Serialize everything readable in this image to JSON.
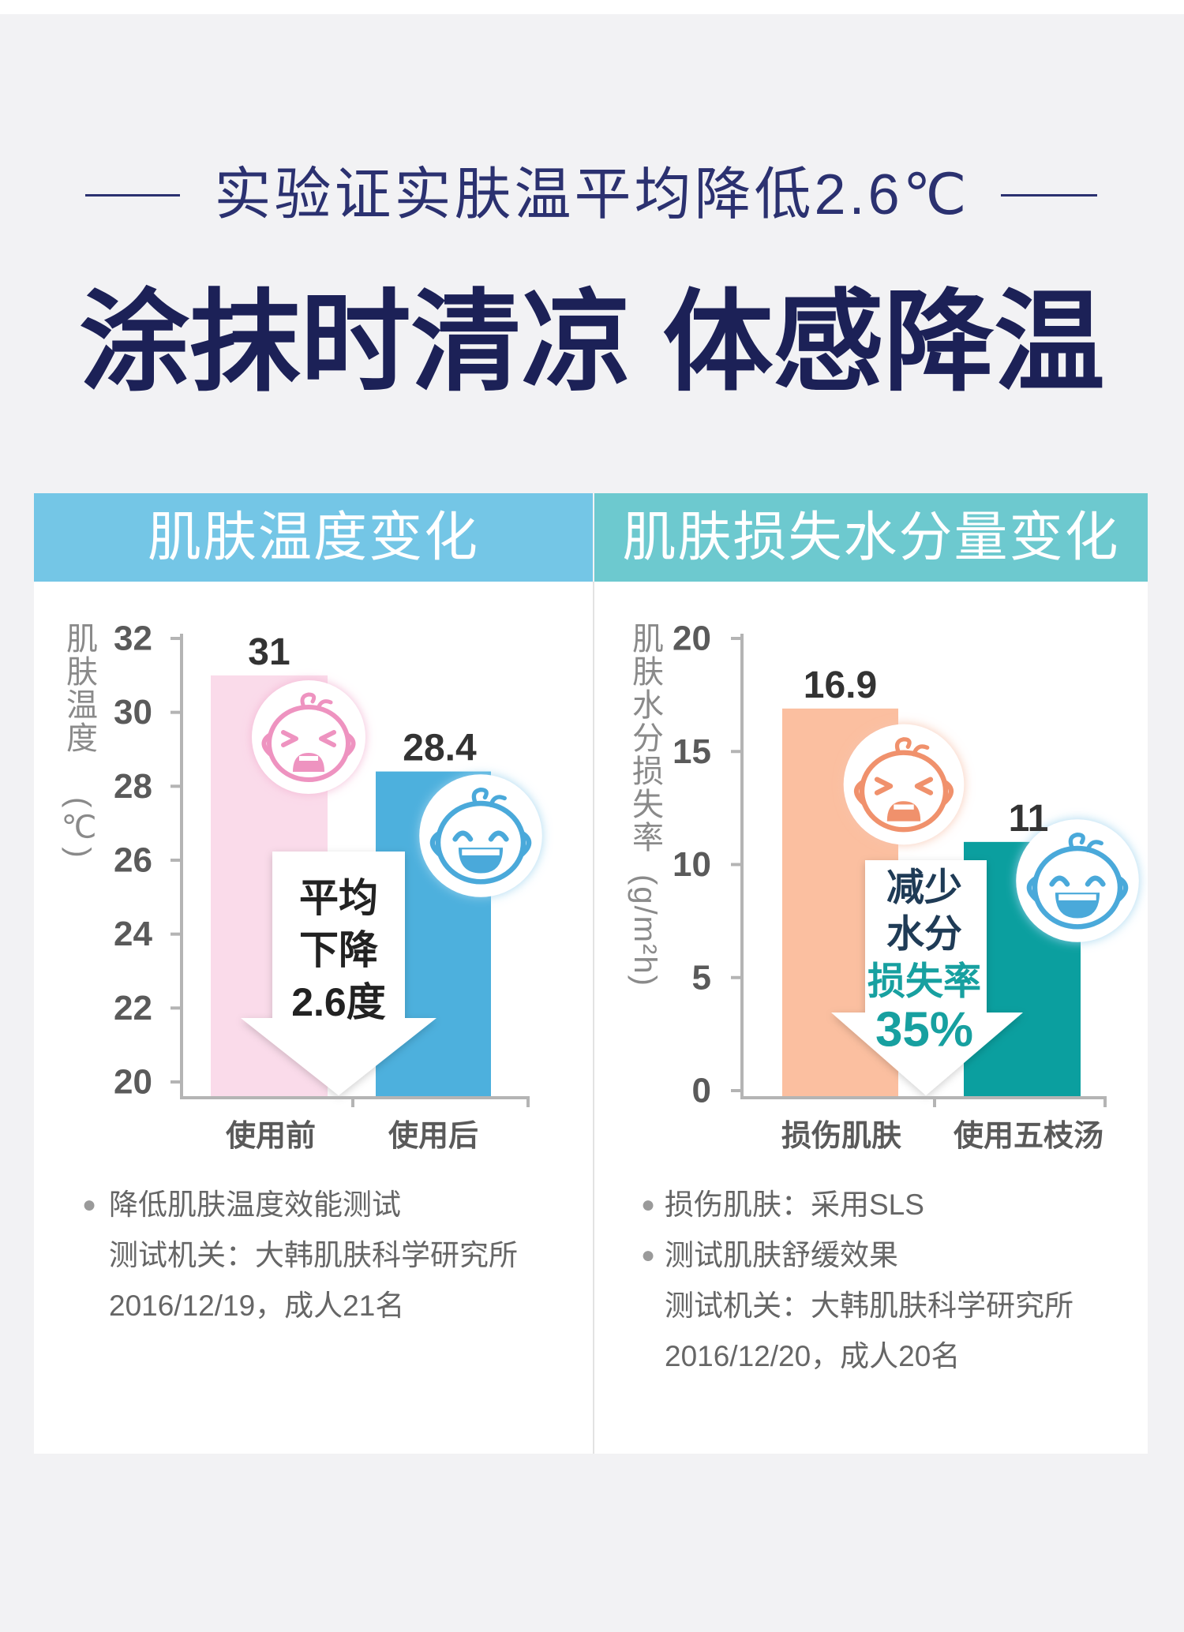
{
  "colors": {
    "background": "#f2f2f4",
    "title": "#1c2157",
    "subtitle": "#2b3170",
    "header_left": "#74c6e6",
    "header_right": "#6dc9cf",
    "note_text": "#666666"
  },
  "subtitle": "实验证实肤温平均降低2.6℃",
  "title": "涂抹时清凉 体感降温",
  "panels": [
    {
      "arrow_lines": [
        "平均",
        "下降",
        "2.6度"
      ],
      "arrow_colors": [
        "#222222",
        "#222222",
        "#222222"
      ],
      "icons": [
        "crying-baby-icon",
        "smiling-baby-icon"
      ],
      "icon_colors": [
        "#ee93c0",
        "#4aa9da"
      ],
      "notes": [
        "降低肌肤温度效能测试",
        "测试机关：大韩肌肤科学研究所",
        "2016/12/19，成人21名"
      ]
    },
    {
      "arrow_lines": [
        "减少",
        "水分",
        "损失率",
        "35%"
      ],
      "arrow_colors": [
        "#1f3b56",
        "#1f3b56",
        "#17a0a0",
        "#17a0a0"
      ],
      "icons": [
        "crying-baby-icon",
        "smiling-baby-icon"
      ],
      "icon_colors": [
        "#f0916c",
        "#4aa9da"
      ],
      "notes": [
        "损伤肌肤：采用SLS",
        "测试肌肤舒缓效果",
        "测试机关：大韩肌肤科学研究所",
        "2016/12/20，成人20名"
      ]
    }
  ],
  "chart_data": [
    {
      "type": "bar",
      "title": "肌肤温度变化",
      "categories": [
        "使用前",
        "使用后"
      ],
      "values": [
        31,
        28.4
      ],
      "ylabel": "肌肤温度",
      "yunit": "(℃)",
      "ylim": [
        20,
        32
      ],
      "yticks": [
        20,
        22,
        24,
        26,
        28,
        30,
        32
      ],
      "bar_colors": [
        "#fadbea",
        "#4db0dd"
      ],
      "grid": false,
      "legend": "none"
    },
    {
      "type": "bar",
      "title": "肌肤损失水分量变化",
      "categories": [
        "损伤肌肤",
        "使用五枝汤"
      ],
      "values": [
        16.9,
        11
      ],
      "ylabel": "肌肤水分损失率",
      "yunit": "(g/m²h)",
      "ylim": [
        0,
        20
      ],
      "yticks": [
        0,
        5,
        10,
        15,
        20
      ],
      "bar_colors": [
        "#fbbfa0",
        "#0b9f9f"
      ],
      "grid": false,
      "legend": "none"
    }
  ]
}
